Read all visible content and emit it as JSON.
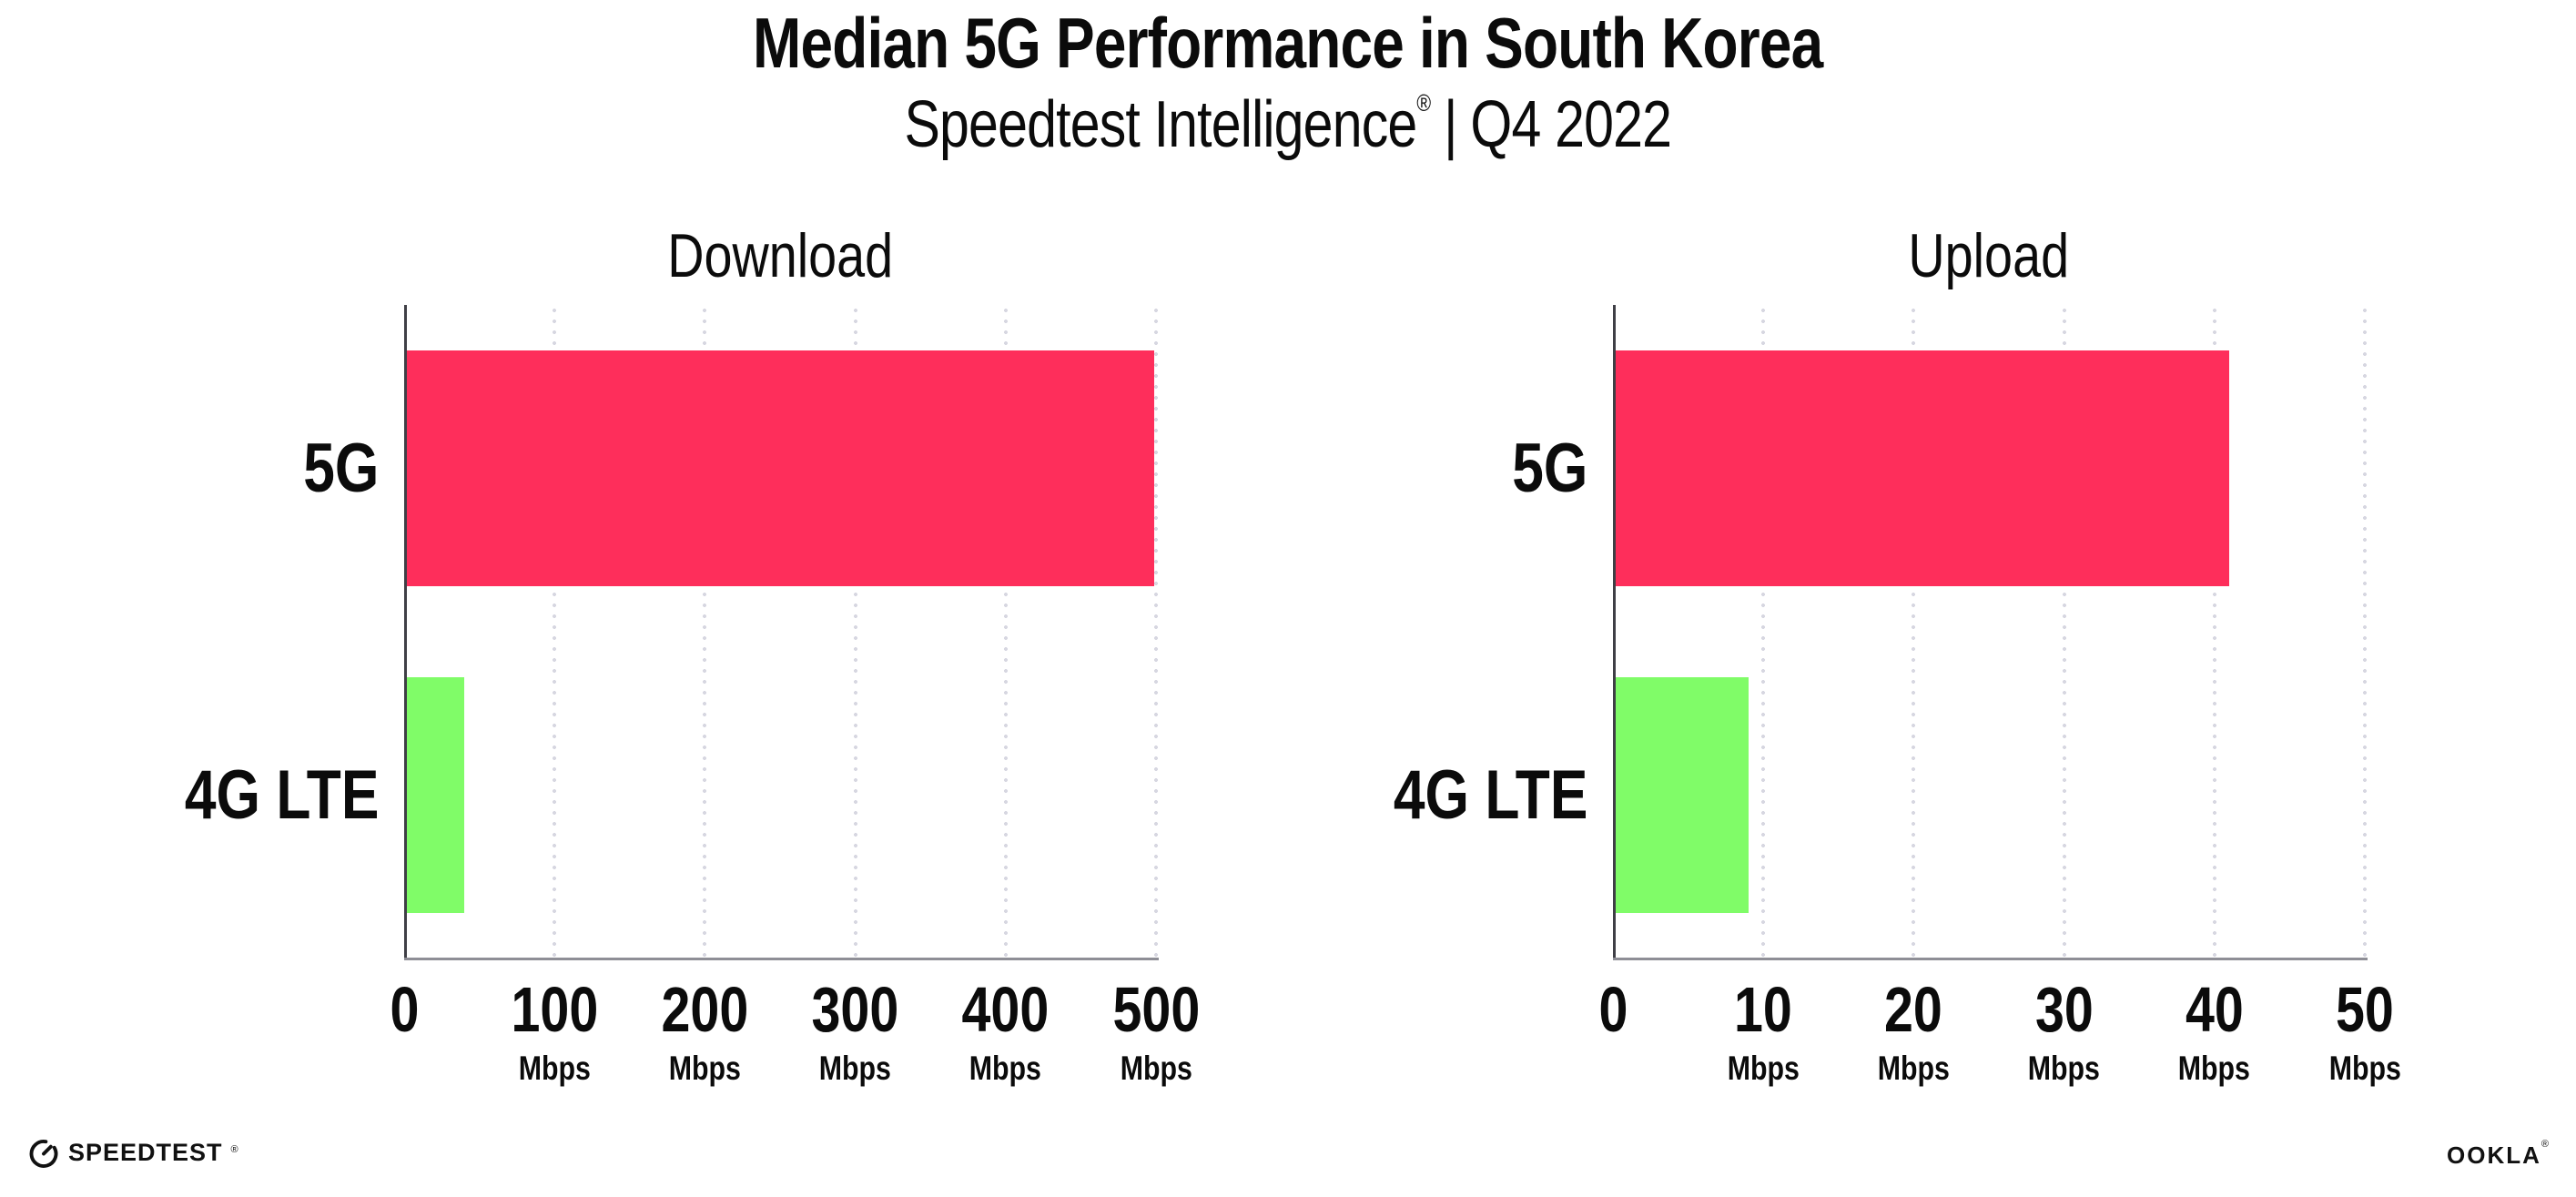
{
  "header": {
    "title": "Median 5G Performance in South Korea",
    "subtitle": {
      "brand": "Speedtest Intelligence",
      "registered_mark": "®",
      "separator": "|",
      "period": "Q4 2022"
    }
  },
  "chart_data": [
    {
      "type": "bar",
      "orientation": "horizontal",
      "title": "Download",
      "categories": [
        "5G",
        "4G LTE"
      ],
      "values": [
        499,
        40
      ],
      "unit": "Mbps",
      "xlim": [
        0,
        500
      ],
      "xticks": [
        0,
        100,
        200,
        300,
        400,
        500
      ],
      "bar_colors": [
        "#FE2E5B",
        "#80FC68"
      ],
      "gridlines": "vertical-dotted",
      "legend": "none"
    },
    {
      "type": "bar",
      "orientation": "horizontal",
      "title": "Upload",
      "categories": [
        "5G",
        "4G LTE"
      ],
      "values": [
        41,
        9
      ],
      "unit": "Mbps",
      "xlim": [
        0,
        50
      ],
      "xticks": [
        0,
        10,
        20,
        30,
        40,
        50
      ],
      "bar_colors": [
        "#FE2E5B",
        "#80FC68"
      ],
      "gridlines": "vertical-dotted",
      "legend": "none"
    }
  ],
  "colors": {
    "bar_5g": "#FE2E5B",
    "bar_4g_lte": "#80FC68",
    "gridline": "#D7D7E1",
    "y_axis_spine": "#3F3F46",
    "x_axis_spine": "#8E8E96",
    "text": "#0B0B0B",
    "background": "#FFFFFF"
  },
  "footer": {
    "speedtest_wordmark": "SPEEDTEST",
    "speedtest_registered_mark": "®",
    "ookla_wordmark": "OOKLA",
    "ookla_registered_mark": "®"
  }
}
